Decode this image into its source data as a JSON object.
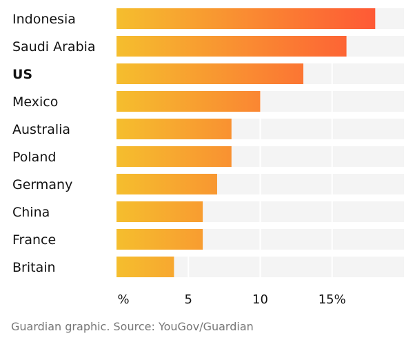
{
  "chart_data": {
    "type": "bar",
    "orientation": "horizontal",
    "categories": [
      "Indonesia",
      "Saudi Arabia",
      "US",
      "Mexico",
      "Australia",
      "Poland",
      "Germany",
      "China",
      "France",
      "Britain"
    ],
    "values": [
      18,
      16,
      13,
      10,
      8,
      8,
      7,
      6,
      6,
      4
    ],
    "highlight_category": "US",
    "xlim": [
      0,
      20
    ],
    "xticks": [
      {
        "value": 0,
        "label": "%"
      },
      {
        "value": 5,
        "label": "5"
      },
      {
        "value": 10,
        "label": "10"
      },
      {
        "value": 15,
        "label": "15%"
      }
    ],
    "grid": true,
    "colors": {
      "gradient_start": "#f5be2e",
      "gradient_end": "#ff4e36",
      "track": "#f4f4f4"
    }
  },
  "source": "Guardian graphic. Source: YouGov/Guardian"
}
